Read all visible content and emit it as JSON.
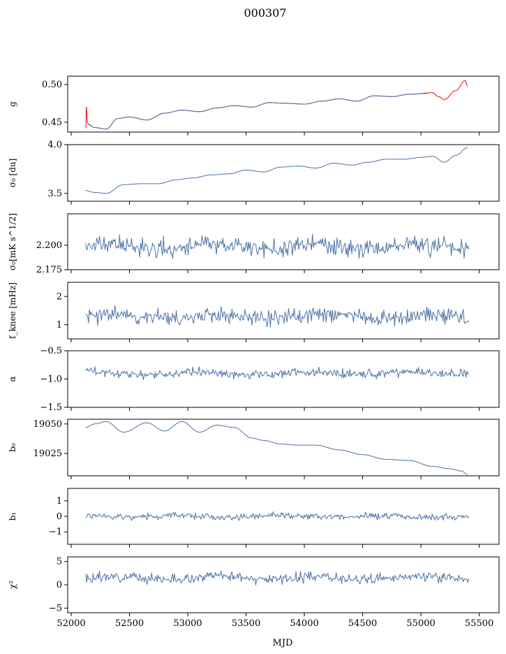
{
  "title": "000307",
  "xlabel": "MJD",
  "xlim": [
    51970,
    55670
  ],
  "xticks": [
    52000,
    52500,
    53000,
    53500,
    54000,
    54500,
    55000,
    55500
  ],
  "xtick_labels": [
    "52000",
    "52500",
    "53000",
    "53500",
    "54000",
    "54500",
    "55000",
    "55500"
  ],
  "colors": {
    "blue": "#4c72a6",
    "red": "#ff0000"
  },
  "chart_data": [
    {
      "type": "line",
      "name": "g",
      "ylabel": "g",
      "ylim": [
        0.437,
        0.511
      ],
      "yticks": [
        0.45,
        0.5
      ],
      "ytick_labels": [
        "0.45",
        "0.50"
      ],
      "series": [
        {
          "color": "red",
          "x": [
            52125,
            52130,
            52140,
            52160,
            52200,
            52300,
            52400,
            52500,
            52650,
            52800,
            52950,
            53100,
            53250,
            53400,
            53550,
            53700,
            53850,
            54000,
            54150,
            54300,
            54450,
            54600,
            54750,
            54900,
            55100,
            55150,
            55200,
            55300,
            55380,
            55400
          ],
          "y": [
            0.442,
            0.47,
            0.449,
            0.446,
            0.443,
            0.441,
            0.455,
            0.457,
            0.453,
            0.462,
            0.466,
            0.464,
            0.469,
            0.472,
            0.47,
            0.476,
            0.475,
            0.474,
            0.478,
            0.481,
            0.478,
            0.485,
            0.484,
            0.487,
            0.489,
            0.484,
            0.48,
            0.492,
            0.505,
            0.498
          ]
        },
        {
          "color": "blue",
          "x": [
            52150,
            52200,
            52300,
            52400,
            52500,
            52650,
            52800,
            52950,
            53100,
            53250,
            53400,
            53550,
            53700,
            53850,
            54000,
            54150,
            54300,
            54450,
            54600,
            54750,
            54900,
            55050
          ],
          "y": [
            0.447,
            0.443,
            0.441,
            0.455,
            0.457,
            0.453,
            0.462,
            0.466,
            0.464,
            0.469,
            0.472,
            0.47,
            0.476,
            0.475,
            0.474,
            0.478,
            0.481,
            0.478,
            0.485,
            0.484,
            0.487,
            0.488
          ]
        }
      ]
    },
    {
      "type": "line",
      "name": "sigma0",
      "ylabel": "σ₀ [du]",
      "ylim": [
        3.42,
        4.0
      ],
      "yticks": [
        3.5,
        4.0
      ],
      "ytick_labels": [
        "3.5",
        "4.0"
      ],
      "series": [
        {
          "color": "blue",
          "x": [
            52120,
            52200,
            52300,
            52450,
            52600,
            52750,
            52900,
            53050,
            53200,
            53350,
            53500,
            53650,
            53800,
            53950,
            54100,
            54250,
            54400,
            54550,
            54700,
            54850,
            55000,
            55100,
            55200,
            55300,
            55400
          ],
          "y": [
            3.53,
            3.51,
            3.5,
            3.59,
            3.6,
            3.6,
            3.64,
            3.66,
            3.69,
            3.7,
            3.74,
            3.72,
            3.77,
            3.78,
            3.76,
            3.81,
            3.79,
            3.82,
            3.85,
            3.85,
            3.87,
            3.88,
            3.82,
            3.89,
            3.97
          ]
        }
      ]
    },
    {
      "type": "line",
      "name": "sigma0-mKs",
      "ylabel": "σ₀[mK s^1/2]",
      "ylim": [
        2.175,
        2.232
      ],
      "yticks": [
        2.175,
        2.2
      ],
      "ytick_labels": [
        "2.175",
        "2.200"
      ],
      "series": [
        {
          "color": "blue",
          "x": [
            52125,
            55410
          ],
          "y_mean": 2.1985,
          "y_amp": 0.007,
          "seed": 11,
          "noise": true
        }
      ]
    },
    {
      "type": "line",
      "name": "fknee",
      "ylabel": "f_knee [mHz]",
      "ylim": [
        0.5,
        2.5
      ],
      "yticks": [
        1,
        2
      ],
      "ytick_labels": [
        "1",
        "2"
      ],
      "series": [
        {
          "color": "blue",
          "x": [
            52125,
            55410
          ],
          "y_mean": 1.3,
          "y_amp": 0.22,
          "seed": 23,
          "noise": true
        }
      ]
    },
    {
      "type": "line",
      "name": "alpha",
      "ylabel": "α",
      "ylim": [
        -1.5,
        -0.5
      ],
      "yticks": [
        -1.5,
        -1.0,
        -0.5
      ],
      "ytick_labels": [
        "−1.5",
        "−1.0",
        "−0.5"
      ],
      "series": [
        {
          "color": "blue",
          "x": [
            52125,
            55410
          ],
          "y_mean": -0.9,
          "y_amp": 0.06,
          "seed": 37,
          "noise": true
        }
      ]
    },
    {
      "type": "line",
      "name": "b0",
      "ylabel": "b₀",
      "ylim": [
        19006,
        19054
      ],
      "yticks": [
        19025,
        19050
      ],
      "ytick_labels": [
        "19025",
        "19050"
      ],
      "series": [
        {
          "color": "blue",
          "x": [
            52125,
            52200,
            52300,
            52450,
            52650,
            52800,
            52950,
            53100,
            53250,
            53400,
            53550,
            53650,
            53800,
            53950,
            54100,
            54300,
            54500,
            54700,
            54900,
            55100,
            55250,
            55350,
            55400
          ],
          "y": [
            19047,
            19050,
            19052,
            19043,
            19051,
            19044,
            19052,
            19043,
            19049,
            19047,
            19038,
            19036,
            19033,
            19032,
            19032,
            19028,
            19024,
            19020,
            19019,
            19014,
            19012,
            19010,
            19007
          ]
        }
      ]
    },
    {
      "type": "line",
      "name": "b1",
      "ylabel": "b₁",
      "ylim": [
        -1.8,
        1.8
      ],
      "yticks": [
        -1,
        0,
        1
      ],
      "ytick_labels": [
        "−1",
        "0",
        "1"
      ],
      "series": [
        {
          "color": "blue",
          "x": [
            52125,
            55410
          ],
          "y_mean": 0.0,
          "y_amp": 0.15,
          "seed": 51,
          "noise": true
        }
      ]
    },
    {
      "type": "line",
      "name": "chi2",
      "ylabel": "χ²",
      "ylim": [
        -6,
        6
      ],
      "yticks": [
        -5,
        0,
        5
      ],
      "ytick_labels": [
        "−5",
        "0",
        "5"
      ],
      "series": [
        {
          "color": "blue",
          "x": [
            52125,
            55410
          ],
          "y_mean": 1.5,
          "y_amp": 0.8,
          "seed": 67,
          "noise": true
        }
      ]
    }
  ]
}
